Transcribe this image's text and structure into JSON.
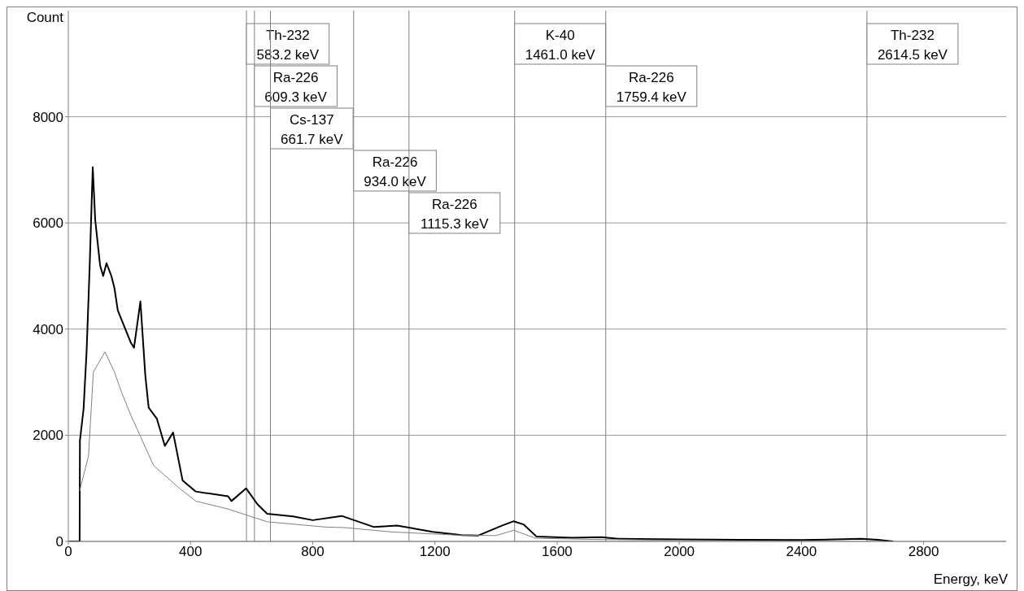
{
  "chart_data": {
    "type": "line",
    "xlabel": "Energy, keV",
    "ylabel": "Count",
    "xlim": [
      0,
      3070
    ],
    "ylim": [
      0,
      10000
    ],
    "xticks": [
      0,
      400,
      800,
      1200,
      1600,
      2000,
      2400,
      2800
    ],
    "yticks": [
      0,
      2000,
      4000,
      6000,
      8000
    ],
    "grid": "y",
    "marker": "none",
    "line_style": "solid",
    "series": [
      {
        "color": "#000000",
        "x": [
          0,
          37,
          38,
          50,
          60,
          70,
          80,
          88,
          104,
          114,
          125,
          141,
          151,
          162,
          205,
          215,
          236,
          252,
          263,
          290,
          316,
          343,
          374,
          417,
          523,
          534,
          582,
          619,
          651,
          736,
          800,
          895,
          1001,
          1076,
          1193,
          1288,
          1341,
          1421,
          1458,
          1490,
          1533,
          1650,
          1745,
          1800,
          2000,
          2200,
          2400,
          2595,
          2650,
          2700
        ],
        "values": [
          0,
          0,
          1900,
          2500,
          3600,
          5200,
          7050,
          6060,
          5200,
          5000,
          5240,
          5000,
          4770,
          4350,
          3740,
          3650,
          4520,
          3130,
          2520,
          2310,
          1800,
          2050,
          1150,
          940,
          850,
          760,
          1000,
          700,
          520,
          470,
          400,
          480,
          270,
          300,
          180,
          120,
          110,
          300,
          380,
          320,
          90,
          70,
          80,
          50,
          40,
          30,
          25,
          50,
          30,
          0
        ]
      },
      {
        "color": "#808080",
        "x": [
          37,
          66,
          82,
          120,
          151,
          173,
          205,
          236,
          279,
          364,
          417,
          523,
          571,
          651,
          842,
          906,
          1054,
          1267,
          1400,
          1458,
          1530,
          1700,
          2000
        ],
        "values": [
          950,
          1610,
          3190,
          3570,
          3190,
          2830,
          2370,
          1980,
          1430,
          1000,
          760,
          610,
          520,
          370,
          270,
          260,
          180,
          120,
          110,
          210,
          60,
          40,
          20
        ]
      }
    ],
    "ref_lines": [
      {
        "axis": "x",
        "value": 583.2,
        "label": "Th-232\n583.2 keV",
        "color": "#808080"
      },
      {
        "axis": "x",
        "value": 609.3,
        "label": "Ra-226\n609.3 keV",
        "color": "#808080"
      },
      {
        "axis": "x",
        "value": 661.7,
        "label": "Cs-137\n661.7 keV",
        "color": "#808080"
      },
      {
        "axis": "x",
        "value": 934.0,
        "label": "Ra-226\n934.0 keV",
        "color": "#808080"
      },
      {
        "axis": "x",
        "value": 1115.3,
        "label": "Ra-226\n1115.3 keV",
        "color": "#808080"
      },
      {
        "axis": "x",
        "value": 1461.0,
        "label": "K-40\n1461.0 keV",
        "color": "#808080"
      },
      {
        "axis": "x",
        "value": 1759.4,
        "label": "Ra-226\n1759.4 keV",
        "color": "#808080"
      },
      {
        "axis": "x",
        "value": 2614.5,
        "label": "Th-232\n2614.5 keV",
        "color": "#808080"
      }
    ]
  }
}
